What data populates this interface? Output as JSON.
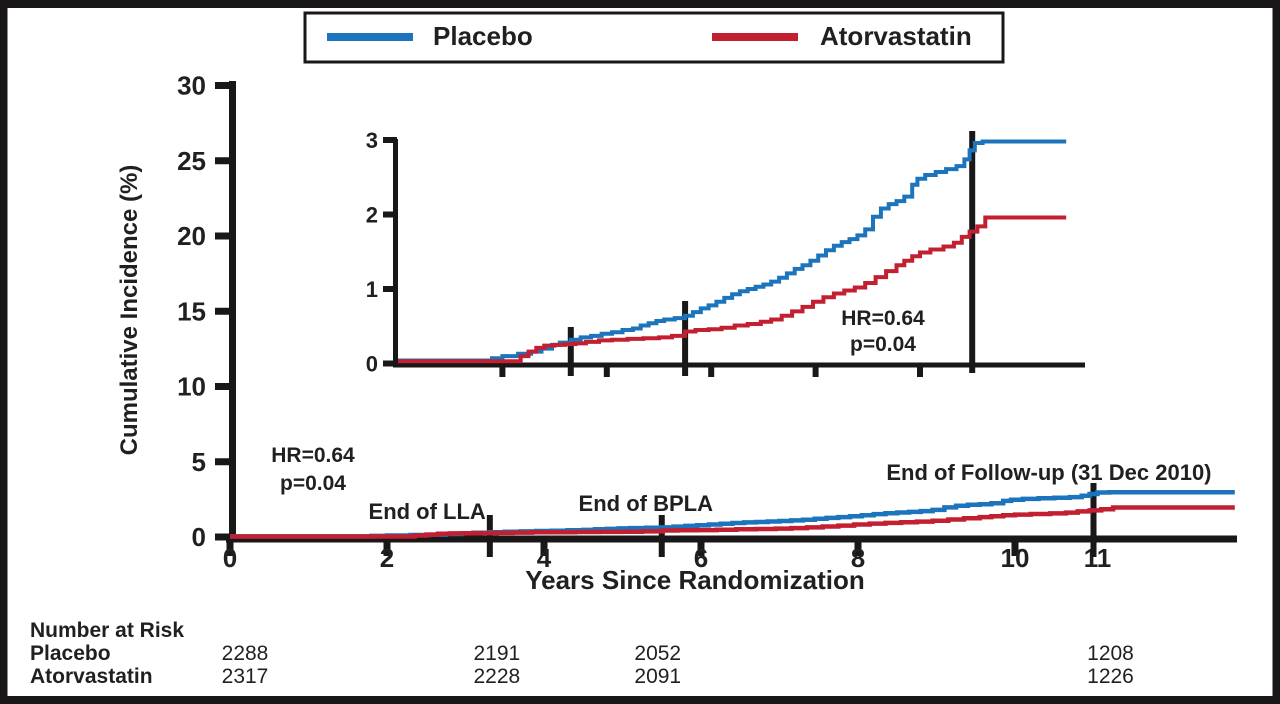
{
  "legend": {
    "items": [
      {
        "label": "Placebo",
        "color": "#1c75bc"
      },
      {
        "label": "Atorvastatin",
        "color": "#c22031"
      }
    ]
  },
  "chart_data": {
    "type": "line",
    "subtype": "step-cumulative-incidence",
    "xlabel": "Years Since Randomization",
    "ylabel": "Cumulative Incidence (%)",
    "xlim": [
      0,
      12.8
    ],
    "main_ylim": [
      0,
      30
    ],
    "main_y_ticks": [
      0,
      5,
      10,
      15,
      20,
      25,
      30
    ],
    "x_ticks": [
      0,
      2,
      4,
      6,
      8,
      10,
      11
    ],
    "inset": {
      "ylim": [
        0,
        3
      ],
      "y_ticks": [
        0,
        1,
        2,
        3
      ],
      "x_tick_years": [
        2,
        4,
        6,
        8,
        10
      ]
    },
    "markers": [
      {
        "label": "End of LLA",
        "year": 3.31
      },
      {
        "label": "End of BPLA",
        "year": 5.5
      },
      {
        "label": "End of Follow-up (31 Dec 2010)",
        "year": 11
      }
    ],
    "annotations": {
      "hr": "HR=0.64",
      "p": "p=0.04"
    },
    "series": [
      {
        "name": "Placebo",
        "color": "#1c75bc",
        "points": [
          [
            0,
            0.04
          ],
          [
            1.8,
            0.07
          ],
          [
            2.0,
            0.1
          ],
          [
            2.3,
            0.13
          ],
          [
            2.55,
            0.16
          ],
          [
            2.75,
            0.2
          ],
          [
            2.95,
            0.25
          ],
          [
            3.1,
            0.28
          ],
          [
            3.31,
            0.32
          ],
          [
            3.5,
            0.35
          ],
          [
            3.7,
            0.37
          ],
          [
            3.9,
            0.4
          ],
          [
            4.1,
            0.42
          ],
          [
            4.3,
            0.45
          ],
          [
            4.5,
            0.47
          ],
          [
            4.65,
            0.51
          ],
          [
            4.8,
            0.54
          ],
          [
            4.95,
            0.57
          ],
          [
            5.1,
            0.59
          ],
          [
            5.3,
            0.61
          ],
          [
            5.5,
            0.64
          ],
          [
            5.65,
            0.69
          ],
          [
            5.8,
            0.74
          ],
          [
            5.95,
            0.78
          ],
          [
            6.1,
            0.83
          ],
          [
            6.25,
            0.88
          ],
          [
            6.4,
            0.93
          ],
          [
            6.55,
            0.97
          ],
          [
            6.7,
            1.0
          ],
          [
            6.85,
            1.03
          ],
          [
            7.0,
            1.06
          ],
          [
            7.15,
            1.1
          ],
          [
            7.3,
            1.15
          ],
          [
            7.45,
            1.21
          ],
          [
            7.6,
            1.27
          ],
          [
            7.75,
            1.32
          ],
          [
            7.9,
            1.38
          ],
          [
            8.05,
            1.45
          ],
          [
            8.2,
            1.52
          ],
          [
            8.35,
            1.58
          ],
          [
            8.5,
            1.63
          ],
          [
            8.65,
            1.67
          ],
          [
            8.8,
            1.72
          ],
          [
            8.95,
            1.8
          ],
          [
            9.1,
            1.97
          ],
          [
            9.25,
            2.08
          ],
          [
            9.4,
            2.14
          ],
          [
            9.55,
            2.18
          ],
          [
            9.7,
            2.24
          ],
          [
            9.85,
            2.4
          ],
          [
            9.95,
            2.48
          ],
          [
            10.1,
            2.53
          ],
          [
            10.3,
            2.57
          ],
          [
            10.5,
            2.61
          ],
          [
            10.7,
            2.65
          ],
          [
            10.85,
            2.74
          ],
          [
            10.95,
            2.86
          ],
          [
            11.05,
            2.96
          ],
          [
            11.2,
            2.98
          ],
          [
            12.8,
            2.98
          ]
        ]
      },
      {
        "name": "Atorvastatin",
        "color": "#c22031",
        "points": [
          [
            0,
            0.03
          ],
          [
            2.35,
            0.1
          ],
          [
            2.5,
            0.16
          ],
          [
            2.65,
            0.21
          ],
          [
            2.8,
            0.24
          ],
          [
            3.0,
            0.25
          ],
          [
            3.2,
            0.26
          ],
          [
            3.4,
            0.27
          ],
          [
            3.6,
            0.29
          ],
          [
            3.85,
            0.31
          ],
          [
            4.1,
            0.32
          ],
          [
            4.4,
            0.33
          ],
          [
            4.7,
            0.34
          ],
          [
            5.0,
            0.35
          ],
          [
            5.25,
            0.37
          ],
          [
            5.5,
            0.43
          ],
          [
            5.7,
            0.45
          ],
          [
            5.95,
            0.46
          ],
          [
            6.2,
            0.48
          ],
          [
            6.45,
            0.51
          ],
          [
            6.7,
            0.53
          ],
          [
            6.95,
            0.56
          ],
          [
            7.15,
            0.59
          ],
          [
            7.35,
            0.64
          ],
          [
            7.55,
            0.7
          ],
          [
            7.75,
            0.76
          ],
          [
            7.95,
            0.83
          ],
          [
            8.15,
            0.89
          ],
          [
            8.35,
            0.94
          ],
          [
            8.55,
            0.98
          ],
          [
            8.75,
            1.02
          ],
          [
            8.95,
            1.08
          ],
          [
            9.15,
            1.16
          ],
          [
            9.35,
            1.24
          ],
          [
            9.55,
            1.32
          ],
          [
            9.7,
            1.38
          ],
          [
            9.85,
            1.44
          ],
          [
            10.0,
            1.49
          ],
          [
            10.2,
            1.53
          ],
          [
            10.45,
            1.57
          ],
          [
            10.65,
            1.62
          ],
          [
            10.8,
            1.7
          ],
          [
            10.95,
            1.77
          ],
          [
            11.1,
            1.84
          ],
          [
            11.25,
            1.96
          ],
          [
            12.8,
            1.96
          ]
        ]
      }
    ]
  },
  "at_risk": {
    "title": "Number at Risk",
    "timepoint_years": [
      0,
      3.31,
      5.5,
      11
    ],
    "rows": [
      {
        "label": "Placebo",
        "values": [
          "2288",
          "2191",
          "2052",
          "1208"
        ]
      },
      {
        "label": "Atorvastatin",
        "values": [
          "2317",
          "2228",
          "2091",
          "1226"
        ]
      }
    ]
  }
}
